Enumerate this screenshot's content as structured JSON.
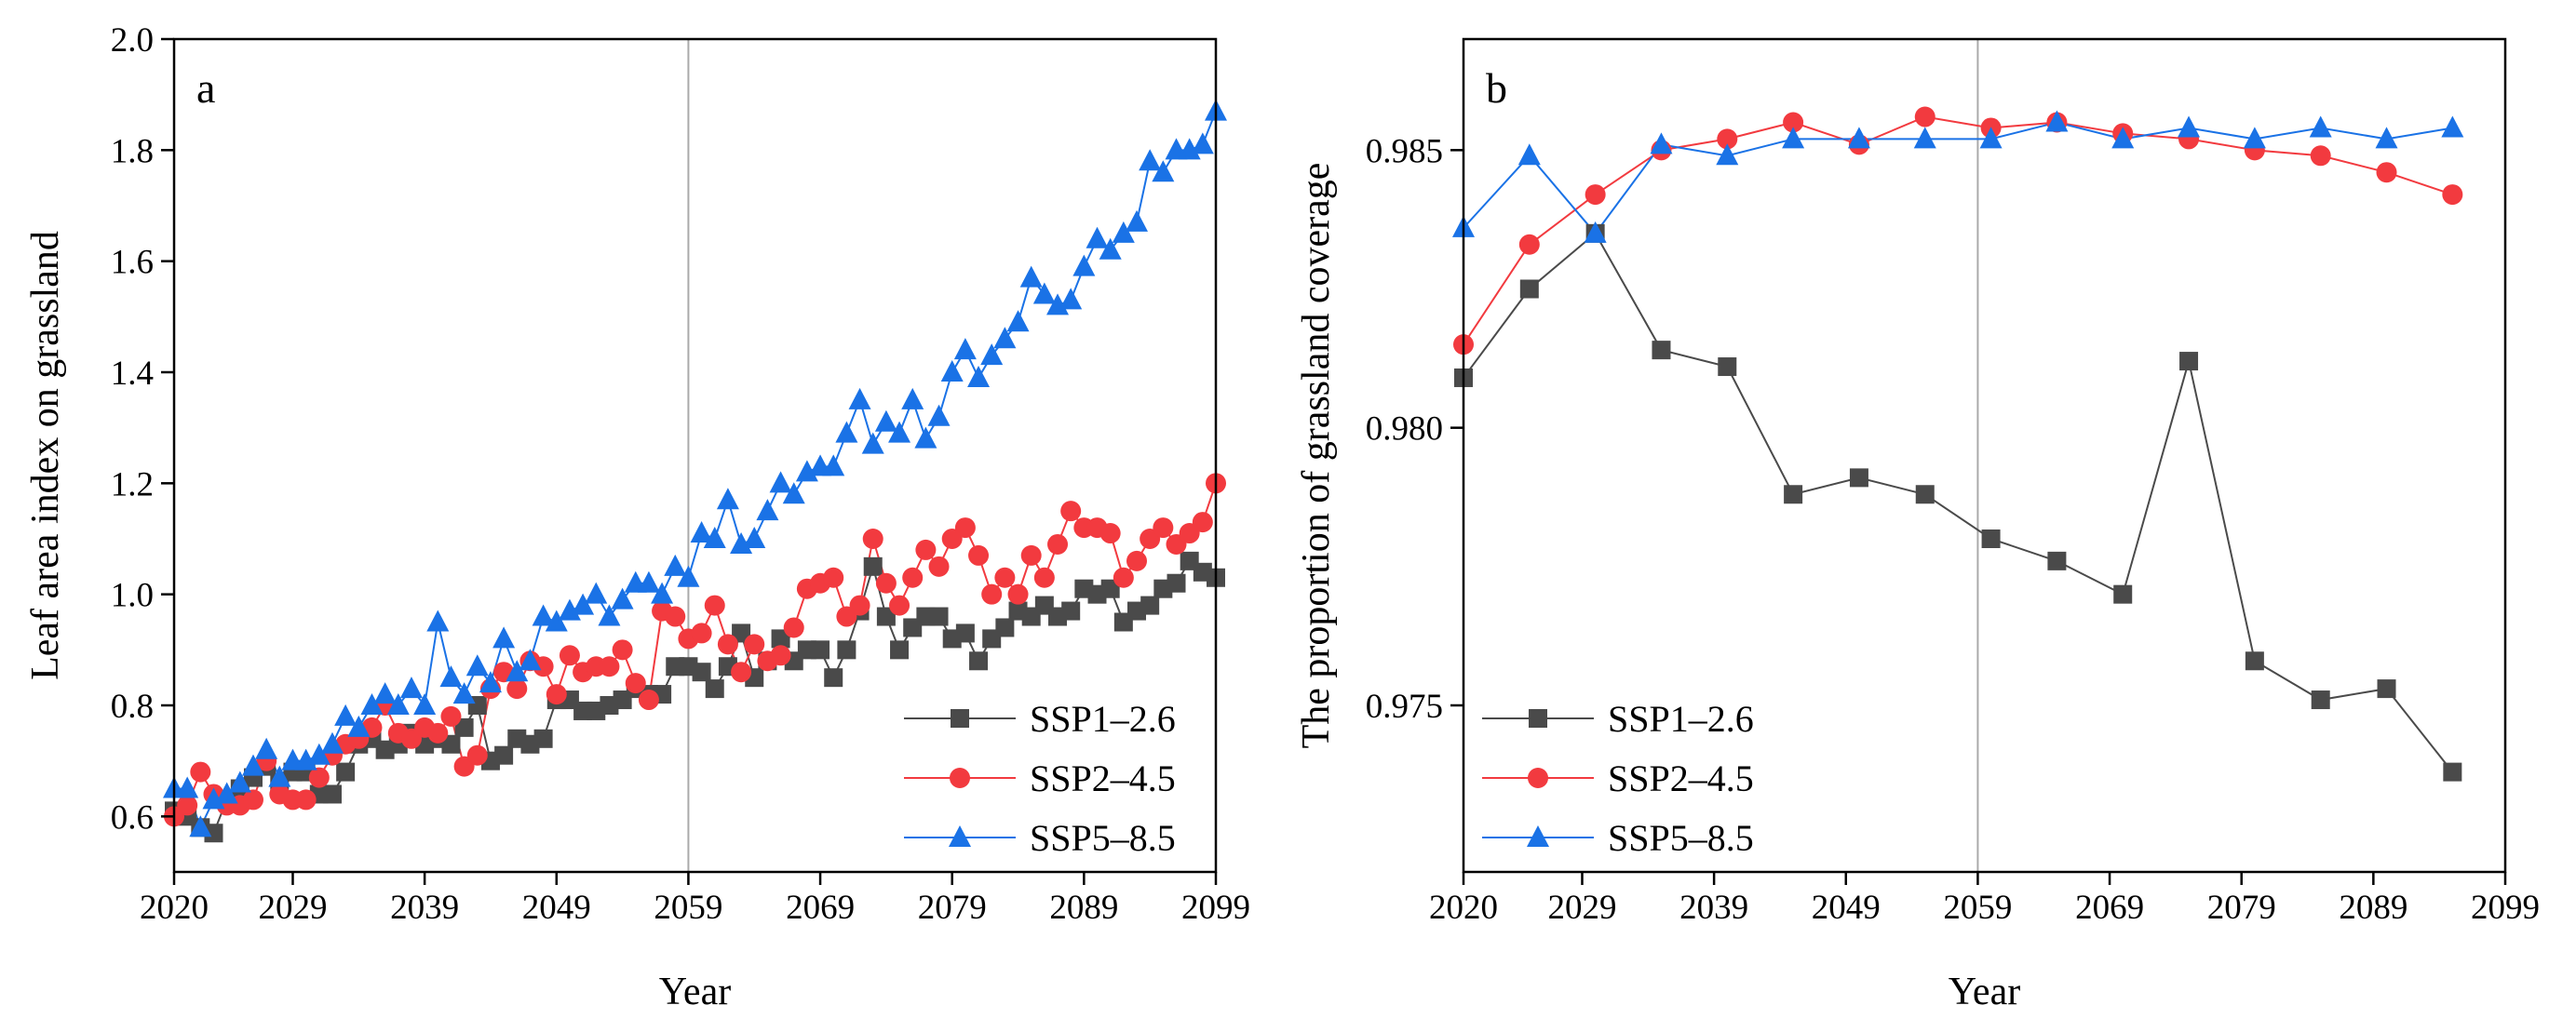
{
  "chart_data": [
    {
      "type": "line",
      "label": "a",
      "xlabel": "Year",
      "ylabel": "Leaf area index on grassland",
      "xlim": [
        2020,
        2099
      ],
      "xticks": [
        2020,
        2029,
        2039,
        2049,
        2059,
        2069,
        2079,
        2089,
        2099
      ],
      "ylim": [
        0.5,
        2.0
      ],
      "yticks": [
        0.6,
        0.8,
        {
          "value": 1.0,
          "label": "1.0"
        },
        1.2,
        1.4,
        1.6,
        1.8,
        {
          "value": 2.0,
          "label": "2.0"
        }
      ],
      "vline": 2059,
      "legend": "lower right",
      "x": [
        2020,
        2021,
        2022,
        2023,
        2024,
        2025,
        2026,
        2027,
        2028,
        2029,
        2030,
        2031,
        2032,
        2033,
        2034,
        2035,
        2036,
        2037,
        2038,
        2039,
        2040,
        2041,
        2042,
        2043,
        2044,
        2045,
        2046,
        2047,
        2048,
        2049,
        2050,
        2051,
        2052,
        2053,
        2054,
        2055,
        2056,
        2057,
        2058,
        2059,
        2060,
        2061,
        2062,
        2063,
        2064,
        2065,
        2066,
        2067,
        2068,
        2069,
        2070,
        2071,
        2072,
        2073,
        2074,
        2075,
        2076,
        2077,
        2078,
        2079,
        2080,
        2081,
        2082,
        2083,
        2084,
        2085,
        2086,
        2087,
        2088,
        2089,
        2090,
        2091,
        2092,
        2093,
        2094,
        2095,
        2096,
        2097,
        2098,
        2099
      ],
      "series": [
        {
          "name": "SSP1–2.6",
          "color": "#4a4a4a",
          "marker": "square",
          "values": [
            0.61,
            0.6,
            0.58,
            0.57,
            0.63,
            0.65,
            0.67,
            0.69,
            0.66,
            0.68,
            0.68,
            0.64,
            0.64,
            0.68,
            0.73,
            0.74,
            0.72,
            0.73,
            0.75,
            0.73,
            0.74,
            0.73,
            0.76,
            0.8,
            0.7,
            0.71,
            0.74,
            0.73,
            0.74,
            0.81,
            0.81,
            0.79,
            0.79,
            0.8,
            0.81,
            0.83,
            0.82,
            0.82,
            0.87,
            0.87,
            0.86,
            0.83,
            0.87,
            0.93,
            0.85,
            0.88,
            0.92,
            0.88,
            0.9,
            0.9,
            0.85,
            0.9,
            0.97,
            1.05,
            0.96,
            0.9,
            0.94,
            0.96,
            0.96,
            0.92,
            0.93,
            0.88,
            0.92,
            0.94,
            0.97,
            0.96,
            0.98,
            0.96,
            0.97,
            1.01,
            1.0,
            1.01,
            0.95,
            0.97,
            0.98,
            1.01,
            1.02,
            1.06,
            1.04,
            1.03
          ]
        },
        {
          "name": "SSP2–4.5",
          "color": "#f23a3f",
          "marker": "circle",
          "values": [
            0.6,
            0.62,
            0.68,
            0.64,
            0.62,
            0.62,
            0.63,
            0.7,
            0.64,
            0.63,
            0.63,
            0.67,
            0.71,
            0.73,
            0.74,
            0.76,
            0.8,
            0.75,
            0.74,
            0.76,
            0.75,
            0.78,
            0.69,
            0.71,
            0.83,
            0.86,
            0.83,
            0.88,
            0.87,
            0.82,
            0.89,
            0.86,
            0.87,
            0.87,
            0.9,
            0.84,
            0.81,
            0.97,
            0.96,
            0.92,
            0.93,
            0.98,
            0.91,
            0.86,
            0.91,
            0.88,
            0.89,
            0.94,
            1.01,
            1.02,
            1.03,
            0.96,
            0.98,
            1.1,
            1.02,
            0.98,
            1.03,
            1.08,
            1.05,
            1.1,
            1.12,
            1.07,
            1.0,
            1.03,
            1.0,
            1.07,
            1.03,
            1.09,
            1.15,
            1.12,
            1.12,
            1.11,
            1.03,
            1.06,
            1.1,
            1.12,
            1.09,
            1.11,
            1.13,
            1.2
          ]
        },
        {
          "name": "SSP5–8.5",
          "color": "#1a72e6",
          "marker": "triangle",
          "values": [
            0.65,
            0.65,
            0.58,
            0.63,
            0.64,
            0.66,
            0.69,
            0.72,
            0.67,
            0.7,
            0.7,
            0.71,
            0.73,
            0.78,
            0.76,
            0.8,
            0.82,
            0.8,
            0.83,
            0.8,
            0.95,
            0.85,
            0.82,
            0.87,
            0.84,
            0.92,
            0.86,
            0.88,
            0.96,
            0.95,
            0.97,
            0.98,
            1.0,
            0.96,
            0.99,
            1.02,
            1.02,
            1.0,
            1.05,
            1.03,
            1.11,
            1.1,
            1.17,
            1.09,
            1.1,
            1.15,
            1.2,
            1.18,
            1.22,
            1.23,
            1.23,
            1.29,
            1.35,
            1.27,
            1.31,
            1.29,
            1.35,
            1.28,
            1.32,
            1.4,
            1.44,
            1.39,
            1.43,
            1.46,
            1.49,
            1.57,
            1.54,
            1.52,
            1.53,
            1.59,
            1.64,
            1.62,
            1.65,
            1.67,
            1.78,
            1.76,
            1.8,
            1.8,
            1.81,
            1.87
          ]
        }
      ]
    },
    {
      "type": "line",
      "label": "b",
      "xlabel": "Year",
      "ylabel": "The proportion of grassland coverage",
      "xlim": [
        2020,
        2099
      ],
      "xticks": [
        2020,
        2029,
        2039,
        2049,
        2059,
        2069,
        2079,
        2089,
        2099
      ],
      "ylim": [
        0.972,
        0.987
      ],
      "yticks": [
        0.975,
        {
          "value": 0.98,
          "label": "0.980"
        },
        0.985
      ],
      "vline": 2059,
      "legend": "lower left",
      "x": [
        2020,
        2025,
        2030,
        2035,
        2040,
        2045,
        2050,
        2055,
        2060,
        2065,
        2070,
        2075,
        2080,
        2085,
        2090,
        2095
      ],
      "series": [
        {
          "name": "SSP1–2.6",
          "color": "#4a4a4a",
          "marker": "square",
          "values": [
            0.9809,
            0.9825,
            0.9835,
            0.9814,
            0.9811,
            0.9788,
            0.9791,
            0.9788,
            0.978,
            0.9776,
            0.977,
            0.9812,
            0.9758,
            0.9751,
            0.9753,
            0.9738
          ]
        },
        {
          "name": "SSP2–4.5",
          "color": "#f23a3f",
          "marker": "circle",
          "values": [
            0.9815,
            0.9833,
            0.9842,
            0.985,
            0.9852,
            0.9855,
            0.9851,
            0.9856,
            0.9854,
            0.9855,
            0.9853,
            0.9852,
            0.985,
            0.9849,
            0.9846,
            0.9842
          ]
        },
        {
          "name": "SSP5–8.5",
          "color": "#1a72e6",
          "marker": "triangle",
          "values": [
            0.9836,
            0.9849,
            0.9835,
            0.9851,
            0.9849,
            0.9852,
            0.9852,
            0.9852,
            0.9852,
            0.9855,
            0.9852,
            0.9854,
            0.9852,
            0.9854,
            0.9852,
            0.9854
          ]
        }
      ]
    }
  ]
}
